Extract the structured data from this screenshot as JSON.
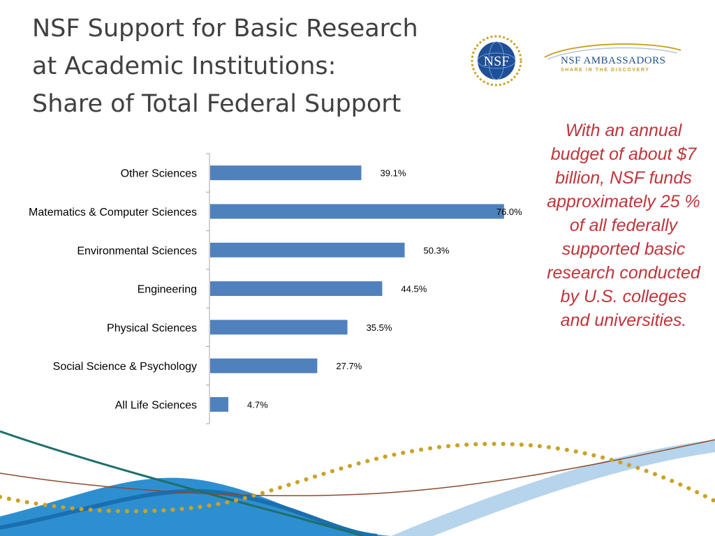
{
  "slide": {
    "title_lines": [
      "NSF Support for Basic Research",
      "at Academic Institutions:",
      "Share of Total Federal Support"
    ],
    "sidebar_text": "With an annual budget of about $7 billion, NSF funds approximately 25 % of all federally supported basic research conducted by U.S. colleges and universities."
  },
  "logos": {
    "seal_text": "NSF",
    "ambassadors_name": "NSF AMBASSADORS",
    "ambassadors_tagline": "SHARE IN THE DISCOVERY"
  },
  "colors": {
    "bar": "#4f81bd",
    "title": "#404040",
    "sidebar_text": "#c0343a",
    "wave_blue": "#2e8fd0",
    "wave_teal": "#1f6f6a",
    "dots_gold": "#c9a227"
  },
  "chart_data": {
    "type": "bar",
    "orientation": "horizontal",
    "categories": [
      "Other Sciences",
      "Matematics & Computer Sciences",
      "Environmental Sciences",
      "Engineering",
      "Physical Sciences",
      "Social Science & Psychology",
      "All Life Sciences"
    ],
    "values": [
      39.1,
      76.0,
      50.3,
      44.5,
      35.5,
      27.7,
      4.7
    ],
    "data_labels": [
      "39.1%",
      "76.0%",
      "50.3%",
      "44.5%",
      "35.5%",
      "27.7%",
      "4.7%"
    ],
    "unit": "%",
    "xlim": [
      0,
      80
    ],
    "grid": false,
    "legend": "none"
  }
}
